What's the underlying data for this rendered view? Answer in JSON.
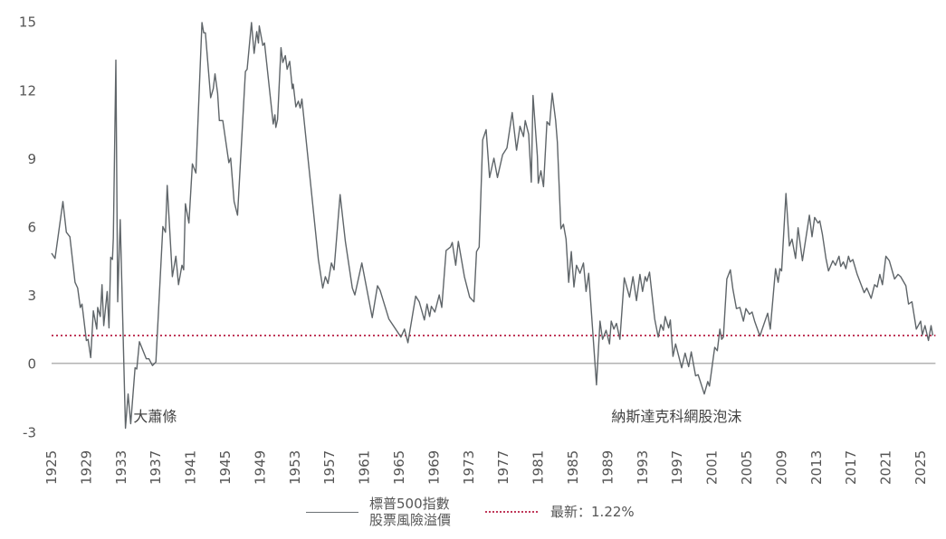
{
  "chart_data": {
    "type": "line",
    "title": "",
    "xlabel": "",
    "ylabel": "",
    "xlim": [
      1925,
      2026.5
    ],
    "ylim": [
      -3,
      15
    ],
    "yticks": [
      15,
      12,
      9,
      6,
      3,
      0,
      -3
    ],
    "xticks": [
      1925,
      1929,
      1933,
      1937,
      1941,
      1945,
      1949,
      1953,
      1957,
      1961,
      1965,
      1969,
      1973,
      1977,
      1981,
      1985,
      1989,
      1993,
      1997,
      2001,
      2005,
      2009,
      2013,
      2017,
      2021,
      2025
    ],
    "grid": false,
    "legend_position": "bottom",
    "series": [
      {
        "name": "標普500指數股票風險溢價",
        "legend_lines": [
          "標普500指數",
          "股票風險溢價"
        ],
        "color": "#5f6569",
        "points": [
          [
            1925.0,
            4.83
          ],
          [
            1925.4,
            4.6
          ],
          [
            1926.3,
            7.1
          ],
          [
            1926.7,
            5.75
          ],
          [
            1927.1,
            5.55
          ],
          [
            1927.7,
            3.55
          ],
          [
            1928.0,
            3.3
          ],
          [
            1928.3,
            2.45
          ],
          [
            1928.5,
            2.6
          ],
          [
            1929.0,
            1.0
          ],
          [
            1929.2,
            1.05
          ],
          [
            1929.5,
            0.25
          ],
          [
            1929.8,
            2.3
          ],
          [
            1930.2,
            1.5
          ],
          [
            1930.3,
            2.45
          ],
          [
            1930.6,
            2.05
          ],
          [
            1930.8,
            3.45
          ],
          [
            1931.0,
            1.65
          ],
          [
            1931.4,
            3.15
          ],
          [
            1931.6,
            1.55
          ],
          [
            1931.8,
            4.65
          ],
          [
            1932.0,
            4.55
          ],
          [
            1932.1,
            5.5
          ],
          [
            1932.4,
            13.3
          ],
          [
            1932.6,
            2.7
          ],
          [
            1932.9,
            6.3
          ],
          [
            1933.5,
            -2.85
          ],
          [
            1933.8,
            -1.35
          ],
          [
            1934.1,
            -2.65
          ],
          [
            1934.6,
            -0.2
          ],
          [
            1934.8,
            -0.25
          ],
          [
            1935.1,
            0.95
          ],
          [
            1935.9,
            0.2
          ],
          [
            1936.2,
            0.2
          ],
          [
            1936.6,
            -0.1
          ],
          [
            1937.0,
            0.05
          ],
          [
            1937.8,
            6.0
          ],
          [
            1938.1,
            5.75
          ],
          [
            1938.3,
            7.8
          ],
          [
            1938.9,
            3.8
          ],
          [
            1939.3,
            4.7
          ],
          [
            1939.6,
            3.45
          ],
          [
            1940.0,
            4.3
          ],
          [
            1940.2,
            4.1
          ],
          [
            1940.4,
            7.0
          ],
          [
            1940.8,
            6.15
          ],
          [
            1941.2,
            8.75
          ],
          [
            1941.6,
            8.35
          ],
          [
            1942.3,
            14.95
          ],
          [
            1942.5,
            14.5
          ],
          [
            1942.7,
            14.5
          ],
          [
            1943.3,
            11.65
          ],
          [
            1943.6,
            12.05
          ],
          [
            1943.8,
            12.7
          ],
          [
            1944.1,
            11.85
          ],
          [
            1944.3,
            10.65
          ],
          [
            1944.7,
            10.65
          ],
          [
            1945.4,
            8.8
          ],
          [
            1945.6,
            9.0
          ],
          [
            1946.0,
            7.1
          ],
          [
            1946.4,
            6.5
          ],
          [
            1947.3,
            12.8
          ],
          [
            1947.5,
            12.9
          ],
          [
            1948.0,
            14.95
          ],
          [
            1948.3,
            13.6
          ],
          [
            1948.6,
            14.55
          ],
          [
            1948.8,
            14.05
          ],
          [
            1948.9,
            14.8
          ],
          [
            1949.3,
            13.95
          ],
          [
            1949.5,
            14.05
          ],
          [
            1950.5,
            10.5
          ],
          [
            1950.7,
            10.9
          ],
          [
            1950.8,
            10.35
          ],
          [
            1951.0,
            10.7
          ],
          [
            1951.4,
            13.85
          ],
          [
            1951.6,
            13.2
          ],
          [
            1951.9,
            13.5
          ],
          [
            1952.1,
            12.9
          ],
          [
            1952.4,
            13.25
          ],
          [
            1952.7,
            12.05
          ],
          [
            1952.8,
            12.25
          ],
          [
            1953.1,
            11.25
          ],
          [
            1953.4,
            11.5
          ],
          [
            1953.6,
            11.2
          ],
          [
            1953.8,
            11.6
          ],
          [
            1955.7,
            4.55
          ],
          [
            1956.2,
            3.3
          ],
          [
            1956.5,
            3.8
          ],
          [
            1956.8,
            3.5
          ],
          [
            1957.2,
            4.4
          ],
          [
            1957.5,
            4.1
          ],
          [
            1958.2,
            7.4
          ],
          [
            1958.8,
            5.35
          ],
          [
            1959.6,
            3.3
          ],
          [
            1959.9,
            3.0
          ],
          [
            1960.7,
            4.4
          ],
          [
            1961.9,
            2.0
          ],
          [
            1962.5,
            3.4
          ],
          [
            1962.8,
            3.2
          ],
          [
            1963.8,
            1.95
          ],
          [
            1965.2,
            1.15
          ],
          [
            1965.6,
            1.5
          ],
          [
            1966.0,
            0.9
          ],
          [
            1966.9,
            2.95
          ],
          [
            1967.3,
            2.7
          ],
          [
            1967.9,
            1.9
          ],
          [
            1968.2,
            2.6
          ],
          [
            1968.5,
            2.05
          ],
          [
            1968.7,
            2.5
          ],
          [
            1969.1,
            2.25
          ],
          [
            1969.6,
            3.0
          ],
          [
            1969.9,
            2.45
          ],
          [
            1970.4,
            4.95
          ],
          [
            1970.9,
            5.1
          ],
          [
            1971.1,
            5.3
          ],
          [
            1971.5,
            4.3
          ],
          [
            1971.8,
            5.35
          ],
          [
            1972.5,
            3.8
          ],
          [
            1973.1,
            2.9
          ],
          [
            1973.6,
            2.7
          ],
          [
            1973.9,
            4.9
          ],
          [
            1974.2,
            5.1
          ],
          [
            1974.6,
            9.8
          ],
          [
            1975.0,
            10.25
          ],
          [
            1975.4,
            8.15
          ],
          [
            1975.9,
            9.0
          ],
          [
            1976.3,
            8.15
          ],
          [
            1976.9,
            9.15
          ],
          [
            1977.4,
            9.45
          ],
          [
            1978.0,
            11.0
          ],
          [
            1978.5,
            9.35
          ],
          [
            1978.9,
            10.4
          ],
          [
            1979.3,
            9.95
          ],
          [
            1979.5,
            10.65
          ],
          [
            1979.9,
            10.05
          ],
          [
            1980.2,
            7.95
          ],
          [
            1980.4,
            11.75
          ],
          [
            1980.9,
            9.1
          ],
          [
            1981.0,
            7.9
          ],
          [
            1981.3,
            8.45
          ],
          [
            1981.6,
            7.75
          ],
          [
            1982.0,
            10.6
          ],
          [
            1982.3,
            10.45
          ],
          [
            1982.6,
            11.85
          ],
          [
            1983.0,
            10.65
          ],
          [
            1983.2,
            9.7
          ],
          [
            1983.6,
            5.9
          ],
          [
            1983.9,
            6.1
          ],
          [
            1984.2,
            5.45
          ],
          [
            1984.5,
            3.55
          ],
          [
            1984.8,
            4.9
          ],
          [
            1985.1,
            3.35
          ],
          [
            1985.4,
            4.3
          ],
          [
            1985.8,
            3.95
          ],
          [
            1986.2,
            4.4
          ],
          [
            1986.5,
            3.15
          ],
          [
            1986.8,
            3.95
          ],
          [
            1987.7,
            -0.95
          ],
          [
            1988.1,
            1.85
          ],
          [
            1988.4,
            1.05
          ],
          [
            1988.8,
            1.45
          ],
          [
            1989.2,
            0.85
          ],
          [
            1989.4,
            1.85
          ],
          [
            1989.7,
            1.5
          ],
          [
            1990.0,
            1.75
          ],
          [
            1990.4,
            1.05
          ],
          [
            1990.9,
            3.75
          ],
          [
            1991.5,
            2.9
          ],
          [
            1991.9,
            3.8
          ],
          [
            1992.3,
            2.75
          ],
          [
            1992.7,
            3.9
          ],
          [
            1993.0,
            3.15
          ],
          [
            1993.3,
            3.8
          ],
          [
            1993.5,
            3.6
          ],
          [
            1993.8,
            4.0
          ],
          [
            1994.4,
            1.95
          ],
          [
            1994.8,
            1.15
          ],
          [
            1995.1,
            1.7
          ],
          [
            1995.4,
            1.45
          ],
          [
            1995.6,
            2.05
          ],
          [
            1996.0,
            1.55
          ],
          [
            1996.2,
            1.9
          ],
          [
            1996.5,
            0.3
          ],
          [
            1996.8,
            0.85
          ],
          [
            1997.5,
            -0.2
          ],
          [
            1997.9,
            0.45
          ],
          [
            1998.3,
            -0.15
          ],
          [
            1998.6,
            0.5
          ],
          [
            1999.1,
            -0.55
          ],
          [
            1999.4,
            -0.5
          ],
          [
            2000.1,
            -1.35
          ],
          [
            2000.5,
            -0.8
          ],
          [
            2000.7,
            -1.0
          ],
          [
            2001.3,
            0.7
          ],
          [
            2001.6,
            0.55
          ],
          [
            2001.9,
            1.5
          ],
          [
            2002.1,
            1.05
          ],
          [
            2002.3,
            1.15
          ],
          [
            2002.7,
            3.7
          ],
          [
            2003.1,
            4.1
          ],
          [
            2003.4,
            3.25
          ],
          [
            2003.8,
            2.4
          ],
          [
            2004.2,
            2.45
          ],
          [
            2004.6,
            1.85
          ],
          [
            2004.9,
            2.4
          ],
          [
            2005.3,
            2.15
          ],
          [
            2005.6,
            2.25
          ],
          [
            2005.9,
            1.85
          ],
          [
            2006.5,
            1.2
          ],
          [
            2007.4,
            2.2
          ],
          [
            2007.7,
            1.5
          ],
          [
            2008.3,
            4.15
          ],
          [
            2008.6,
            3.55
          ],
          [
            2008.8,
            4.15
          ],
          [
            2009.0,
            4.05
          ],
          [
            2009.5,
            7.45
          ],
          [
            2009.9,
            5.15
          ],
          [
            2010.2,
            5.45
          ],
          [
            2010.6,
            4.6
          ],
          [
            2010.9,
            5.95
          ],
          [
            2011.4,
            4.5
          ],
          [
            2012.2,
            6.5
          ],
          [
            2012.5,
            5.55
          ],
          [
            2012.8,
            6.4
          ],
          [
            2013.2,
            6.15
          ],
          [
            2013.4,
            6.25
          ],
          [
            2013.7,
            5.65
          ],
          [
            2014.1,
            4.6
          ],
          [
            2014.4,
            4.05
          ],
          [
            2014.9,
            4.5
          ],
          [
            2015.2,
            4.3
          ],
          [
            2015.6,
            4.7
          ],
          [
            2015.8,
            4.25
          ],
          [
            2016.1,
            4.45
          ],
          [
            2016.4,
            4.15
          ],
          [
            2016.7,
            4.7
          ],
          [
            2016.9,
            4.45
          ],
          [
            2017.2,
            4.55
          ],
          [
            2017.7,
            3.9
          ],
          [
            2018.5,
            3.1
          ],
          [
            2018.8,
            3.3
          ],
          [
            2019.3,
            2.85
          ],
          [
            2019.7,
            3.45
          ],
          [
            2020.0,
            3.35
          ],
          [
            2020.3,
            3.9
          ],
          [
            2020.6,
            3.45
          ],
          [
            2021.0,
            4.7
          ],
          [
            2021.4,
            4.5
          ],
          [
            2022.0,
            3.7
          ],
          [
            2022.4,
            3.9
          ],
          [
            2022.7,
            3.8
          ],
          [
            2023.3,
            3.4
          ],
          [
            2023.6,
            2.6
          ],
          [
            2024.0,
            2.7
          ],
          [
            2024.5,
            1.5
          ],
          [
            2025.0,
            1.85
          ],
          [
            2025.2,
            1.25
          ],
          [
            2025.5,
            1.65
          ],
          [
            2025.9,
            1.0
          ],
          [
            2026.2,
            1.65
          ],
          [
            2026.4,
            1.22
          ]
        ]
      },
      {
        "name": "最新：1.22%",
        "label": "最新：1.22%",
        "type": "reference-line",
        "value": 1.22,
        "color": "#c0395a"
      }
    ],
    "baseline": {
      "value": 0,
      "color": "#b3b3b3"
    },
    "annotations": [
      {
        "text": "大蕭條",
        "x": 1934,
        "y": -2
      },
      {
        "text": "納斯達克科網股泡沫",
        "x": 1989,
        "y": -2
      }
    ]
  }
}
